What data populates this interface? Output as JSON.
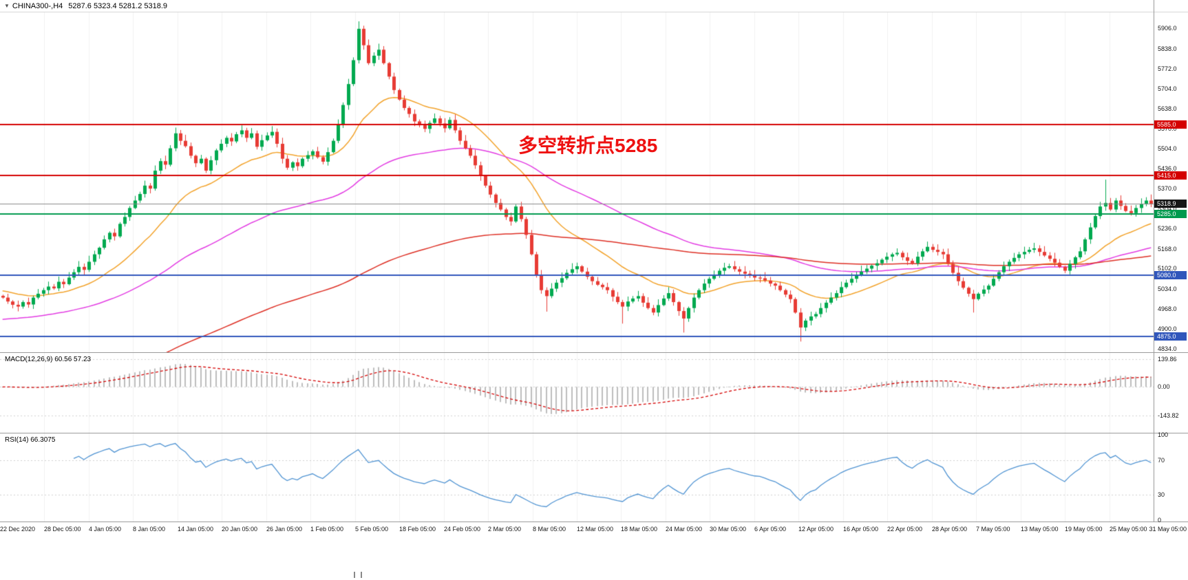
{
  "header": {
    "symbol_timeframe": "CHINA300-,H4",
    "ohlc": "5287.6 5323.4 5281.2 5318.9"
  },
  "annotation": {
    "text": "多空转折点5285",
    "color": "#ee1111"
  },
  "colors": {
    "up": "#00a94f",
    "down": "#e73b34",
    "ma_fast": "#f2a22a",
    "ma_mid": "#e23ae2",
    "ma_slow": "#dd2e23",
    "hline_red": "#d40000",
    "hline_green": "#009a4e",
    "hline_blue": "#3056bb",
    "current_line": "#8a8a8a",
    "current_badge": "#161616",
    "macd_hist": "#bdbdbd",
    "macd_signal": "#d40000",
    "rsi_line": "#4f93d2",
    "grid": "#f1f1f1",
    "axis_text": "#141414",
    "separator": "#9b9b9b"
  },
  "chart_data": {
    "type": "candlestick",
    "symbol": "CHINA300-",
    "timeframe": "H4",
    "x_labels": [
      "22 Dec 2020",
      "28 Dec 05:00",
      "4 Jan 05:00",
      "8 Jan 05:00",
      "14 Jan 05:00",
      "20 Jan 05:00",
      "26 Jan 05:00",
      "1 Feb 05:00",
      "5 Feb 05:00",
      "18 Feb 05:00",
      "24 Feb 05:00",
      "2 Mar 05:00",
      "8 Mar 05:00",
      "12 Mar 05:00",
      "18 Mar 05:00",
      "24 Mar 05:00",
      "30 Mar 05:00",
      "6 Apr 05:00",
      "12 Apr 05:00",
      "16 Apr 05:00",
      "22 Apr 05:00",
      "28 Apr 05:00",
      "7 May 05:00",
      "13 May 05:00",
      "19 May 05:00",
      "25 May 05:00",
      "31 May 05:00"
    ],
    "main": {
      "ylim": [
        4822,
        5960
      ],
      "y_ticks": [
        "5906.0",
        "5838.0",
        "5772.0",
        "5704.0",
        "5638.0",
        "5570.0",
        "5504.0",
        "5436.0",
        "5370.0",
        "5304.0",
        "5236.0",
        "5168.0",
        "5102.0",
        "5034.0",
        "4968.0",
        "4900.0",
        "4834.0"
      ],
      "closes": [
        5005,
        4992,
        4981,
        4975,
        4990,
        4982,
        5005,
        5018,
        5030,
        5042,
        5036,
        5058,
        5050,
        5072,
        5090,
        5108,
        5098,
        5125,
        5150,
        5172,
        5200,
        5222,
        5210,
        5252,
        5275,
        5305,
        5330,
        5352,
        5380,
        5370,
        5430,
        5462,
        5450,
        5505,
        5555,
        5530,
        5512,
        5480,
        5455,
        5470,
        5430,
        5465,
        5498,
        5520,
        5540,
        5528,
        5552,
        5565,
        5540,
        5555,
        5510,
        5532,
        5548,
        5560,
        5520,
        5470,
        5440,
        5458,
        5445,
        5470,
        5482,
        5495,
        5475,
        5460,
        5492,
        5530,
        5585,
        5650,
        5720,
        5800,
        5905,
        5850,
        5790,
        5815,
        5835,
        5790,
        5745,
        5700,
        5668,
        5640,
        5620,
        5595,
        5582,
        5570,
        5590,
        5605,
        5588,
        5572,
        5600,
        5565,
        5530,
        5505,
        5480,
        5448,
        5412,
        5380,
        5350,
        5322,
        5300,
        5275,
        5260,
        5310,
        5268,
        5215,
        5150,
        5080,
        5030,
        5010,
        5035,
        5055,
        5070,
        5088,
        5100,
        5110,
        5092,
        5075,
        5060,
        5048,
        5040,
        5030,
        5008,
        4990,
        4975,
        4992,
        5002,
        5010,
        4988,
        4970,
        4955,
        4980,
        5002,
        5020,
        4990,
        4960,
        4935,
        4970,
        5005,
        5030,
        5052,
        5068,
        5080,
        5095,
        5105,
        5110,
        5100,
        5092,
        5085,
        5078,
        5072,
        5070,
        5062,
        5052,
        5045,
        5030,
        5015,
        5000,
        4955,
        4905,
        4928,
        4942,
        4950,
        4970,
        4988,
        5005,
        5020,
        5040,
        5055,
        5068,
        5080,
        5092,
        5102,
        5112,
        5120,
        5132,
        5142,
        5150,
        5155,
        5140,
        5128,
        5120,
        5142,
        5160,
        5175,
        5165,
        5158,
        5150,
        5118,
        5088,
        5060,
        5038,
        5018,
        5000,
        5018,
        5032,
        5045,
        5068,
        5090,
        5110,
        5125,
        5138,
        5150,
        5158,
        5165,
        5170,
        5158,
        5146,
        5135,
        5122,
        5108,
        5095,
        5118,
        5140,
        5160,
        5200,
        5240,
        5278,
        5310,
        5322,
        5300,
        5330,
        5312,
        5295,
        5288,
        5305,
        5318,
        5330,
        5318.9
      ],
      "wick_overrides": [
        {
          "index": 70,
          "high": 5930
        },
        {
          "index": 107,
          "low": 4958
        },
        {
          "index": 122,
          "low": 4918
        },
        {
          "index": 134,
          "low": 4888
        },
        {
          "index": 157,
          "low": 4858
        },
        {
          "index": 191,
          "low": 4955
        },
        {
          "index": 217,
          "high": 5400
        }
      ],
      "hlines": [
        {
          "value": 5585.0,
          "label": "5585.0",
          "color_key": "red"
        },
        {
          "value": 5415.0,
          "label": "5415.0",
          "color_key": "red"
        },
        {
          "value": 5285.0,
          "label": "5285.0",
          "color_key": "green"
        },
        {
          "value": 5080.0,
          "label": "5080.0",
          "color_key": "blue"
        },
        {
          "value": 4875.0,
          "label": "4875.0",
          "color_key": "blue"
        }
      ],
      "current_price": {
        "value": 5318.9,
        "label": "5318.9"
      },
      "moving_averages": [
        {
          "name": "fast",
          "period": 22,
          "start": 5030,
          "color": "#f2a22a"
        },
        {
          "name": "mid",
          "period": 70,
          "start": 4930,
          "color": "#e23ae2"
        },
        {
          "name": "slow",
          "period": 170,
          "start": 4650,
          "color": "#dd2e23"
        }
      ]
    },
    "macd": {
      "label": "MACD(12,26,9) 60.56 57.23",
      "params": [
        12,
        26,
        9
      ],
      "main_value": 60.56,
      "signal_value": 57.23,
      "y_ticks": [
        "139.86",
        "0.00",
        "-143.82"
      ],
      "ylim": [
        -230,
        170
      ]
    },
    "rsi": {
      "label": "RSI(14) 66.3075",
      "period": 14,
      "value": 66.3075,
      "y_ticks": [
        "100",
        "70",
        "30",
        "0"
      ],
      "levels": [
        70,
        30
      ],
      "ylim": [
        -2,
        102
      ]
    }
  }
}
